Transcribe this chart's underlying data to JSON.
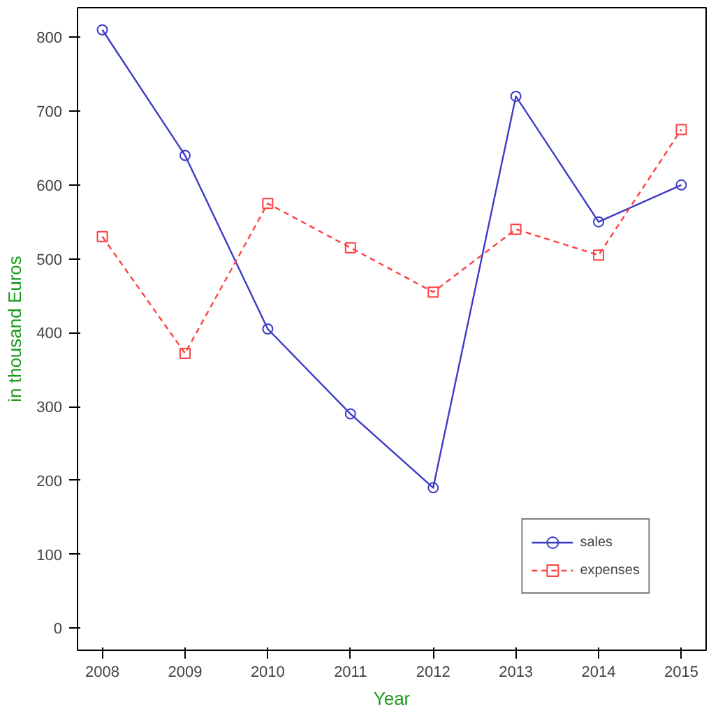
{
  "chart_data": {
    "type": "line",
    "xlabel": "Year",
    "ylabel": "in thousand Euros",
    "x": [
      2008,
      2009,
      2010,
      2011,
      2012,
      2013,
      2014,
      2015
    ],
    "series": [
      {
        "name": "sales",
        "color": "#3c3cc8",
        "marker": "circle",
        "line_style": "solid",
        "values": [
          810,
          640,
          405,
          290,
          190,
          720,
          550,
          600
        ]
      },
      {
        "name": "expenses",
        "color": "#ff4040",
        "marker": "square",
        "line_style": "dashed",
        "values": [
          530,
          372,
          575,
          515,
          455,
          540,
          505,
          675
        ]
      }
    ],
    "xlim": [
      2007.7,
      2015.3
    ],
    "ylim": [
      -30,
      840
    ],
    "xticks": [
      2008,
      2009,
      2010,
      2011,
      2012,
      2013,
      2014,
      2015
    ],
    "yticks": [
      0,
      100,
      200,
      300,
      400,
      500,
      600,
      700,
      800
    ],
    "grid": false,
    "legend": "bottom right"
  }
}
